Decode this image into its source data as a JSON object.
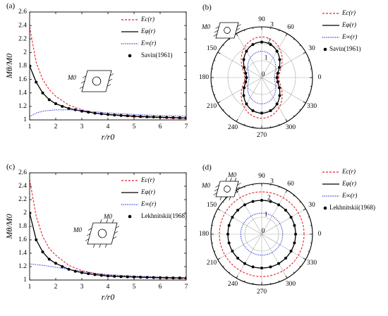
{
  "colors": {
    "ec": "#e8222a",
    "ephi": "#000000",
    "einf": "#1f2bd6",
    "grid": "#aaaaaa",
    "axis": "#000000",
    "marker": "#000000"
  },
  "chart_data": [
    {
      "panel": "a",
      "panel_label": "(a)",
      "type": "line",
      "ylabel": "Mθ/M0",
      "xlabel": "r/r0",
      "xlim": [
        1,
        7
      ],
      "ylim": [
        1,
        2.6
      ],
      "xticks": [
        "1",
        "2",
        "3",
        "4",
        "5",
        "6",
        "7"
      ],
      "yticks": [
        "1",
        "1.2",
        "1.4",
        "1.6",
        "1.8",
        "2",
        "2.2",
        "2.4",
        "2.6"
      ],
      "legend_position": "top-right",
      "inset": {
        "load_label": "M0"
      },
      "series": [
        {
          "name": "Ec(r)",
          "style": "dashed",
          "color_key": "ec",
          "x": [
            1,
            1.25,
            1.5,
            1.75,
            2,
            2.5,
            3,
            3.5,
            4,
            5,
            6,
            7
          ],
          "y": [
            2.38,
            1.85,
            1.6,
            1.45,
            1.35,
            1.22,
            1.15,
            1.1,
            1.075,
            1.045,
            1.03,
            1.02
          ]
        },
        {
          "name": "Eφ(r)",
          "style": "solid",
          "color_key": "ephi",
          "x": [
            1,
            1.25,
            1.5,
            1.75,
            2,
            2.5,
            3,
            3.5,
            4,
            5,
            6,
            7
          ],
          "y": [
            1.8,
            1.56,
            1.4,
            1.3,
            1.24,
            1.17,
            1.13,
            1.1,
            1.08,
            1.055,
            1.04,
            1.03
          ]
        },
        {
          "name": "E∞(r)",
          "style": "dotted",
          "color_key": "einf",
          "x": [
            1,
            1.25,
            1.5,
            2,
            2.5,
            3,
            3.5,
            4,
            5,
            6,
            7
          ],
          "y": [
            1.05,
            1.1,
            1.13,
            1.15,
            1.15,
            1.14,
            1.12,
            1.105,
            1.08,
            1.065,
            1.055
          ]
        },
        {
          "name": "Savin(1961)",
          "style": "markers",
          "color_key": "marker",
          "x": [
            1,
            1.25,
            1.5,
            1.75,
            2,
            2.25,
            2.5,
            2.75,
            3,
            3.25,
            3.5,
            3.75,
            4,
            4.25,
            4.5,
            4.75,
            5,
            5.25,
            5.5,
            5.75,
            6,
            6.25,
            6.5,
            6.75,
            7
          ],
          "y": [
            1.8,
            1.56,
            1.4,
            1.3,
            1.24,
            1.2,
            1.17,
            1.15,
            1.13,
            1.115,
            1.1,
            1.09,
            1.08,
            1.072,
            1.065,
            1.06,
            1.055,
            1.05,
            1.046,
            1.043,
            1.04,
            1.037,
            1.034,
            1.032,
            1.03
          ]
        }
      ]
    },
    {
      "panel": "b",
      "panel_label": "(b)",
      "type": "polar",
      "rlim": [
        0,
        3
      ],
      "rticks": [
        "0",
        "1",
        "2",
        "3"
      ],
      "angle_ticks": [
        "0",
        "30",
        "60",
        "90",
        "120",
        "150",
        "180",
        "210",
        "240",
        "270",
        "300",
        "330"
      ],
      "legend_position": "right",
      "inset": {
        "load_label": "M0"
      },
      "series": [
        {
          "name": "Ec(r)",
          "style": "dashed",
          "color_key": "ec",
          "model": "cos2",
          "a": 1.7,
          "b": 0.7
        },
        {
          "name": "Eφ(r)",
          "style": "solid",
          "color_key": "ephi",
          "model": "cos2",
          "a": 1.5,
          "b": 0.6
        },
        {
          "name": "E∞(r)",
          "style": "dotted",
          "color_key": "einf",
          "model": "cos2",
          "a": 1.15,
          "b": 0.4
        },
        {
          "name": "Savin(1961)",
          "style": "markers",
          "color_key": "marker",
          "theta": [
            0,
            15,
            30,
            45,
            60,
            75,
            90,
            105,
            120,
            135,
            150,
            165,
            180,
            195,
            210,
            225,
            240,
            255,
            270,
            285,
            300,
            315,
            330,
            345
          ],
          "r": [
            0.9,
            0.98,
            1.2,
            1.5,
            1.8,
            2.02,
            2.1,
            2.02,
            1.8,
            1.5,
            1.2,
            0.98,
            0.9,
            0.98,
            1.2,
            1.5,
            1.8,
            2.02,
            2.1,
            2.02,
            1.8,
            1.5,
            1.2,
            0.98
          ]
        }
      ]
    },
    {
      "panel": "c",
      "panel_label": "(c)",
      "type": "line",
      "ylabel": "Mθ/M0",
      "xlabel": "r/r0",
      "xlim": [
        1,
        7
      ],
      "ylim": [
        1,
        2.6
      ],
      "xticks": [
        "1",
        "2",
        "3",
        "4",
        "5",
        "6",
        "7"
      ],
      "yticks": [
        "1",
        "1.2",
        "1.4",
        "1.6",
        "1.8",
        "2",
        "2.2",
        "2.4",
        "2.6"
      ],
      "legend_position": "top-right",
      "inset": {
        "load_label_top": "M0",
        "load_label_left": "M0"
      },
      "series": [
        {
          "name": "Ec(r)",
          "style": "dashed",
          "color_key": "ec",
          "x": [
            1,
            1.25,
            1.5,
            1.75,
            2,
            2.5,
            3,
            3.5,
            4,
            5,
            6,
            7
          ],
          "y": [
            2.5,
            1.95,
            1.65,
            1.47,
            1.37,
            1.22,
            1.14,
            1.1,
            1.07,
            1.045,
            1.03,
            1.02
          ]
        },
        {
          "name": "Eφ(r)",
          "style": "solid",
          "color_key": "ephi",
          "x": [
            1,
            1.25,
            1.5,
            1.75,
            2,
            2.5,
            3,
            3.5,
            4,
            5,
            6,
            7
          ],
          "y": [
            2.0,
            1.6,
            1.42,
            1.31,
            1.25,
            1.16,
            1.11,
            1.08,
            1.06,
            1.045,
            1.035,
            1.03
          ]
        },
        {
          "name": "E∞(r)",
          "style": "dotted",
          "color_key": "einf",
          "x": [
            1,
            1.5,
            2,
            2.5,
            3,
            3.5,
            4,
            5,
            6,
            7
          ],
          "y": [
            1.24,
            1.22,
            1.19,
            1.16,
            1.13,
            1.1,
            1.08,
            1.06,
            1.045,
            1.035
          ]
        },
        {
          "name": "Lekhnitskii(1968)",
          "style": "markers",
          "color_key": "marker",
          "x": [
            1,
            1.25,
            1.5,
            1.75,
            2,
            2.25,
            2.5,
            2.75,
            3,
            3.25,
            3.5,
            3.75,
            4,
            4.25,
            4.5,
            4.75,
            5,
            5.25,
            5.5,
            5.75,
            6,
            6.25,
            6.5,
            6.75,
            7
          ],
          "y": [
            2.0,
            1.6,
            1.42,
            1.31,
            1.25,
            1.2,
            1.16,
            1.13,
            1.11,
            1.095,
            1.08,
            1.07,
            1.06,
            1.055,
            1.05,
            1.047,
            1.045,
            1.042,
            1.04,
            1.037,
            1.035,
            1.033,
            1.032,
            1.031,
            1.03
          ]
        }
      ]
    },
    {
      "panel": "d",
      "panel_label": "(d)",
      "type": "polar",
      "rlim": [
        0,
        3
      ],
      "rticks": [
        "0",
        "1",
        "2",
        "3"
      ],
      "angle_ticks": [
        "0",
        "30",
        "60",
        "90",
        "120",
        "150",
        "180",
        "210",
        "240",
        "270",
        "300",
        "330"
      ],
      "legend_position": "right",
      "inset": {
        "load_label_top": "M0",
        "load_label_left": "M0"
      },
      "series": [
        {
          "name": "Ec(r)",
          "style": "dashed",
          "color_key": "ec",
          "model": "circle",
          "a": 2.5,
          "b": 0
        },
        {
          "name": "Eφ(r)",
          "style": "solid",
          "color_key": "ephi",
          "model": "circle",
          "a": 2.0,
          "b": 0
        },
        {
          "name": "E∞(r)",
          "style": "dotted",
          "color_key": "einf",
          "model": "circle",
          "a": 1.24,
          "b": 0
        },
        {
          "name": "Lekhnitskii(1968)",
          "style": "markers",
          "color_key": "marker",
          "theta": [
            0,
            15,
            30,
            45,
            60,
            75,
            90,
            105,
            120,
            135,
            150,
            165,
            180,
            195,
            210,
            225,
            240,
            255,
            270,
            285,
            300,
            315,
            330,
            345
          ],
          "r": [
            2.0,
            2.0,
            2.0,
            2.0,
            2.0,
            2.0,
            2.0,
            2.0,
            2.0,
            2.0,
            2.0,
            2.0,
            2.0,
            2.0,
            2.0,
            2.0,
            2.0,
            2.0,
            2.0,
            2.0,
            2.0,
            2.0,
            2.0,
            2.0
          ]
        }
      ]
    }
  ]
}
